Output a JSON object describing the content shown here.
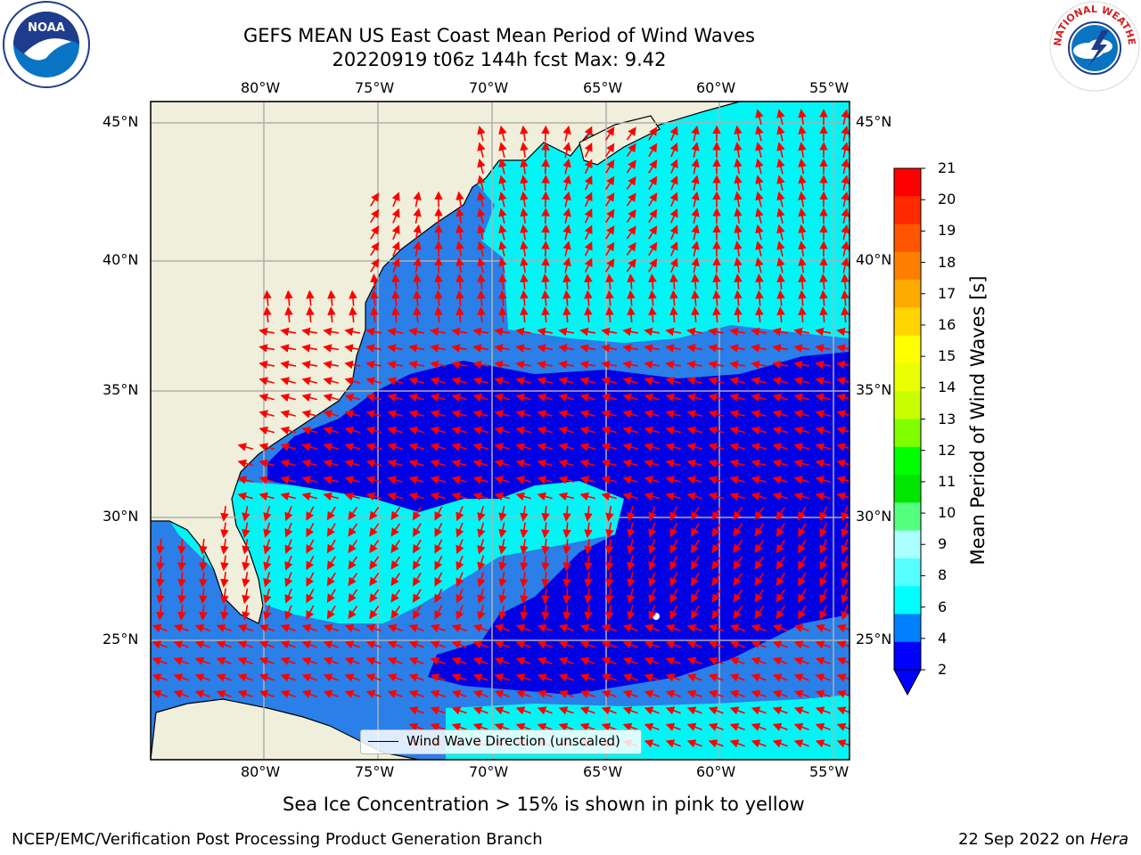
{
  "header": {
    "title_line1": "GEFS MEAN US East Coast Mean Period of Wind Waves",
    "title_line2": "20220919 t06z 144h fcst   Max: 9.42"
  },
  "logos": {
    "left": {
      "name": "noaa-logo",
      "text": "NOAA"
    },
    "right": {
      "name": "nws-logo",
      "text": "NATIONAL WEATHER SERVICE"
    }
  },
  "map": {
    "lon_ticks": [
      "80°W",
      "75°W",
      "70°W",
      "65°W",
      "60°W",
      "55°W"
    ],
    "lat_ticks": [
      "45°N",
      "40°N",
      "35°N",
      "30°N",
      "25°N"
    ],
    "legend_label": "Wind Wave Direction (unscaled)",
    "arrow_color": "#ff0000",
    "land_color": "#efefdb"
  },
  "colorbar": {
    "label": "Mean Period of Wind Waves [s]",
    "ticks": [
      "21",
      "20",
      "19",
      "18",
      "17",
      "16",
      "15",
      "14",
      "13",
      "12",
      "11",
      "10",
      "9",
      "8",
      "6",
      "4",
      "2"
    ],
    "colors": [
      "#ff0000",
      "#ff2a00",
      "#ff5500",
      "#ff8000",
      "#ffaa00",
      "#ffd400",
      "#ffff00",
      "#eaff00",
      "#c8ff00",
      "#80ff00",
      "#00ff00",
      "#00e600",
      "#55ff80",
      "#aaffff",
      "#55ffff",
      "#00ffff",
      "#0080ff",
      "#0000ff"
    ]
  },
  "caption": "Sea Ice Concentration > 15% is shown in pink to yellow",
  "footer": {
    "left": "NCEP/EMC/Verification Post Processing Product Generation Branch",
    "right_date": "22 Sep 2022 on",
    "right_host": "Hera"
  }
}
